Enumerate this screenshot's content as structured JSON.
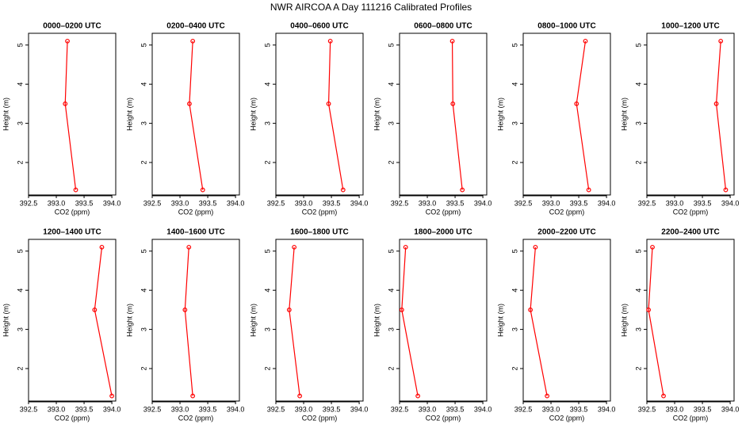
{
  "title": "NWR AIRCOA A  Day 111216  Calibrated Profiles",
  "chart_data": [
    {
      "type": "line",
      "title": "0000–0200 UTC",
      "x_label": "CO2 (ppm)",
      "y_label": "Height (m)",
      "xlim": [
        392.5,
        394.07
      ],
      "ylim": [
        1.17,
        5.3
      ],
      "xticks": [
        392.5,
        {
          "value": 393,
          "label": "393.0"
        },
        393.5,
        {
          "value": 394,
          "label": "394.0"
        }
      ],
      "yticks": [
        2,
        3,
        4,
        5
      ],
      "series": [
        {
          "color": "#ff0000",
          "x": [
            393.2,
            393.16,
            393.35
          ],
          "y": [
            5.1,
            3.5,
            1.3
          ]
        }
      ]
    },
    {
      "type": "line",
      "title": "0200–0400 UTC",
      "x_label": "CO2 (ppm)",
      "y_label": "Height (m)",
      "xlim": [
        392.5,
        394.07
      ],
      "ylim": [
        1.17,
        5.3
      ],
      "xticks": [
        392.5,
        {
          "value": 393,
          "label": "393.0"
        },
        393.5,
        {
          "value": 394,
          "label": "394.0"
        }
      ],
      "yticks": [
        2,
        3,
        4,
        5
      ],
      "series": [
        {
          "color": "#ff0000",
          "x": [
            393.23,
            393.17,
            393.41
          ],
          "y": [
            5.1,
            3.5,
            1.3
          ]
        }
      ]
    },
    {
      "type": "line",
      "title": "0400–0600 UTC",
      "x_label": "CO2 (ppm)",
      "y_label": "Height (m)",
      "xlim": [
        392.5,
        394.07
      ],
      "ylim": [
        1.17,
        5.3
      ],
      "xticks": [
        392.5,
        {
          "value": 393,
          "label": "393.0"
        },
        393.5,
        {
          "value": 394,
          "label": "394.0"
        }
      ],
      "yticks": [
        2,
        3,
        4,
        5
      ],
      "series": [
        {
          "color": "#ff0000",
          "x": [
            393.48,
            393.45,
            393.71
          ],
          "y": [
            5.1,
            3.5,
            1.3
          ]
        }
      ]
    },
    {
      "type": "line",
      "title": "0600–0800 UTC",
      "x_label": "CO2 (ppm)",
      "y_label": "Height (m)",
      "xlim": [
        392.5,
        394.07
      ],
      "ylim": [
        1.17,
        5.3
      ],
      "xticks": [
        392.5,
        {
          "value": 393,
          "label": "393.0"
        },
        393.5,
        {
          "value": 394,
          "label": "394.0"
        }
      ],
      "yticks": [
        2,
        3,
        4,
        5
      ],
      "series": [
        {
          "color": "#ff0000",
          "x": [
            393.45,
            393.46,
            393.63
          ],
          "y": [
            5.1,
            3.5,
            1.3
          ]
        }
      ]
    },
    {
      "type": "line",
      "title": "0800–1000 UTC",
      "x_label": "CO2 (ppm)",
      "y_label": "Height (m)",
      "xlim": [
        392.5,
        394.07
      ],
      "ylim": [
        1.17,
        5.3
      ],
      "xticks": [
        392.5,
        {
          "value": 393,
          "label": "393.0"
        },
        393.5,
        {
          "value": 394,
          "label": "394.0"
        }
      ],
      "yticks": [
        2,
        3,
        4,
        5
      ],
      "series": [
        {
          "color": "#ff0000",
          "x": [
            393.62,
            393.46,
            393.68
          ],
          "y": [
            5.1,
            3.5,
            1.3
          ]
        }
      ]
    },
    {
      "type": "line",
      "title": "1000–1200 UTC",
      "x_label": "CO2 (ppm)",
      "y_label": "Height (m)",
      "xlim": [
        392.5,
        394.07
      ],
      "ylim": [
        1.17,
        5.3
      ],
      "xticks": [
        392.5,
        {
          "value": 393,
          "label": "393.0"
        },
        393.5,
        {
          "value": 394,
          "label": "394.0"
        }
      ],
      "yticks": [
        2,
        3,
        4,
        5
      ],
      "series": [
        {
          "color": "#ff0000",
          "x": [
            393.83,
            393.75,
            393.92
          ],
          "y": [
            5.1,
            3.5,
            1.3
          ]
        }
      ]
    },
    {
      "type": "line",
      "title": "1200–1400 UTC",
      "x_label": "CO2 (ppm)",
      "y_label": "Height (m)",
      "xlim": [
        392.5,
        394.07
      ],
      "ylim": [
        1.17,
        5.3
      ],
      "xticks": [
        392.5,
        {
          "value": 393,
          "label": "393.0"
        },
        393.5,
        {
          "value": 394,
          "label": "394.0"
        }
      ],
      "yticks": [
        2,
        3,
        4,
        5
      ],
      "series": [
        {
          "color": "#ff0000",
          "x": [
            393.82,
            393.69,
            394.0
          ],
          "y": [
            5.1,
            3.5,
            1.3
          ]
        }
      ]
    },
    {
      "type": "line",
      "title": "1400–1600 UTC",
      "x_label": "CO2 (ppm)",
      "y_label": "Height (m)",
      "xlim": [
        392.5,
        394.07
      ],
      "ylim": [
        1.17,
        5.3
      ],
      "xticks": [
        392.5,
        {
          "value": 393,
          "label": "393.0"
        },
        393.5,
        {
          "value": 394,
          "label": "394.0"
        }
      ],
      "yticks": [
        2,
        3,
        4,
        5
      ],
      "series": [
        {
          "color": "#ff0000",
          "x": [
            393.16,
            393.09,
            393.23
          ],
          "y": [
            5.1,
            3.5,
            1.3
          ]
        }
      ]
    },
    {
      "type": "line",
      "title": "1600–1800 UTC",
      "x_label": "CO2 (ppm)",
      "y_label": "Height (m)",
      "xlim": [
        392.5,
        394.07
      ],
      "ylim": [
        1.17,
        5.3
      ],
      "xticks": [
        392.5,
        {
          "value": 393,
          "label": "393.0"
        },
        393.5,
        {
          "value": 394,
          "label": "394.0"
        }
      ],
      "yticks": [
        2,
        3,
        4,
        5
      ],
      "series": [
        {
          "color": "#ff0000",
          "x": [
            392.83,
            392.74,
            392.93
          ],
          "y": [
            5.1,
            3.5,
            1.3
          ]
        }
      ]
    },
    {
      "type": "line",
      "title": "1800–2000 UTC",
      "x_label": "CO2 (ppm)",
      "y_label": "Height (m)",
      "xlim": [
        392.5,
        394.07
      ],
      "ylim": [
        1.17,
        5.3
      ],
      "xticks": [
        392.5,
        {
          "value": 393,
          "label": "393.0"
        },
        393.5,
        {
          "value": 394,
          "label": "394.0"
        }
      ],
      "yticks": [
        2,
        3,
        4,
        5
      ],
      "series": [
        {
          "color": "#ff0000",
          "x": [
            392.61,
            392.54,
            392.83
          ],
          "y": [
            5.1,
            3.5,
            1.3
          ]
        }
      ]
    },
    {
      "type": "line",
      "title": "2000–2200 UTC",
      "x_label": "CO2 (ppm)",
      "y_label": "Height (m)",
      "xlim": [
        392.5,
        394.07
      ],
      "ylim": [
        1.17,
        5.3
      ],
      "xticks": [
        392.5,
        {
          "value": 393,
          "label": "393.0"
        },
        393.5,
        {
          "value": 394,
          "label": "394.0"
        }
      ],
      "yticks": [
        2,
        3,
        4,
        5
      ],
      "series": [
        {
          "color": "#ff0000",
          "x": [
            392.72,
            392.63,
            392.93
          ],
          "y": [
            5.1,
            3.5,
            1.3
          ]
        }
      ]
    },
    {
      "type": "line",
      "title": "2200–2400 UTC",
      "x_label": "CO2 (ppm)",
      "y_label": "Height (m)",
      "xlim": [
        392.5,
        394.07
      ],
      "ylim": [
        1.17,
        5.3
      ],
      "xticks": [
        392.5,
        {
          "value": 393,
          "label": "393.0"
        },
        393.5,
        {
          "value": 394,
          "label": "394.0"
        }
      ],
      "yticks": [
        2,
        3,
        4,
        5
      ],
      "series": [
        {
          "color": "#ff0000",
          "x": [
            392.6,
            392.53,
            392.8
          ],
          "y": [
            5.1,
            3.5,
            1.3
          ]
        }
      ]
    }
  ]
}
